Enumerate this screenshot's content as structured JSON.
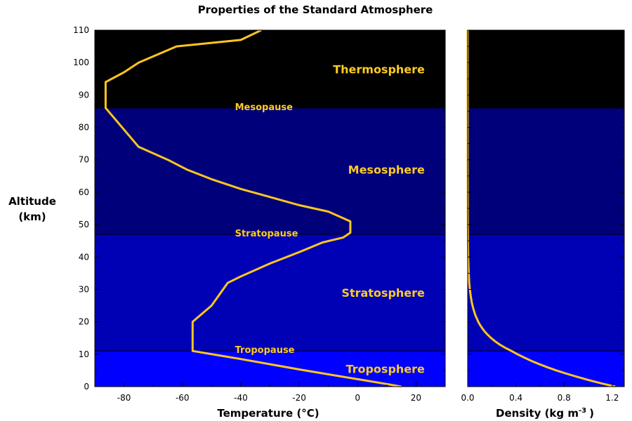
{
  "title": "Properties of the Standard Atmosphere",
  "colors": {
    "thermosphere": "#000000",
    "mesosphere": "#00007a",
    "stratosphere": "#0000b5",
    "troposphere": "#0000ff",
    "profile_line": "#ffc61e",
    "label_text": "#ffcc22"
  },
  "chart_data": [
    {
      "type": "line",
      "name": "temperature-panel",
      "xlabel": "Temperature (°C)",
      "ylabel": "Altitude\n(km)",
      "xlim": [
        -90,
        30
      ],
      "ylim": [
        0,
        110
      ],
      "xticks": [
        -80,
        -60,
        -40,
        -20,
        0,
        20
      ],
      "yticks": [
        0,
        10,
        20,
        30,
        40,
        50,
        60,
        70,
        80,
        90,
        100,
        110
      ],
      "layers": [
        {
          "name": "Troposphere",
          "bottom": 0,
          "top": 11,
          "label_x": 23,
          "label_y": 5.5
        },
        {
          "name": "Stratosphere",
          "bottom": 11,
          "top": 47,
          "label_x": 23,
          "label_y": 29
        },
        {
          "name": "Mesosphere",
          "bottom": 47,
          "top": 86,
          "label_x": 23,
          "label_y": 67
        },
        {
          "name": "Thermosphere",
          "bottom": 86,
          "top": 110,
          "label_x": 23,
          "label_y": 98
        }
      ],
      "boundary_labels": [
        {
          "text": "Tropopause",
          "x": -42,
          "y": 11
        },
        {
          "text": "Stratopause",
          "x": -42,
          "y": 47
        },
        {
          "text": "Mesopause",
          "x": -42,
          "y": 86
        }
      ],
      "x": [
        15,
        10,
        0,
        -10,
        -20,
        -30,
        -40,
        -56.5,
        -56.5,
        -56.5,
        -50,
        -44.5,
        -40,
        -35,
        -30,
        -20,
        -12,
        -5,
        -2.5,
        -2.5,
        -5,
        -10,
        -20,
        -30,
        -40,
        -50,
        -58.5,
        -65,
        -75,
        -86.3,
        -86.3,
        -80,
        -75,
        -62,
        -40,
        -33
      ],
      "y": [
        0,
        0.8,
        2.3,
        3.8,
        5.3,
        6.9,
        8.5,
        11,
        15,
        20,
        25,
        32,
        34,
        36,
        38,
        41.5,
        44.5,
        46,
        47.5,
        51,
        52,
        54,
        56,
        58.5,
        61,
        64,
        67,
        70,
        74,
        86,
        94,
        97,
        100,
        105,
        107,
        110
      ]
    },
    {
      "type": "line",
      "name": "density-panel",
      "xlabel": "Density (kg m",
      "xlabel_exponent": "-3",
      "xlabel_suffix": ")",
      "xlim": [
        0,
        1.3
      ],
      "ylim": [
        0,
        110
      ],
      "xticks": [
        "0.0",
        "0.4",
        "0.8",
        "1.2"
      ],
      "x": [
        1.225,
        1.112,
        1.007,
        0.909,
        0.819,
        0.736,
        0.66,
        0.59,
        0.526,
        0.467,
        0.413,
        0.364,
        0.311,
        0.265,
        0.227,
        0.194,
        0.166,
        0.141,
        0.121,
        0.103,
        0.088,
        0.064,
        0.047,
        0.034,
        0.025,
        0.018,
        0.013,
        0.0075,
        0.004,
        0.0021,
        0.001,
        0.0005,
        0.0002,
        0.0001,
        0.0001
      ],
      "y": [
        0,
        1,
        2,
        3,
        4,
        5,
        6,
        7,
        8,
        9,
        10,
        11,
        12,
        13,
        14,
        15,
        16,
        17,
        18,
        19,
        20,
        22,
        24,
        26,
        28,
        30,
        32,
        36,
        40,
        45,
        50,
        60,
        70,
        80,
        110
      ]
    }
  ]
}
